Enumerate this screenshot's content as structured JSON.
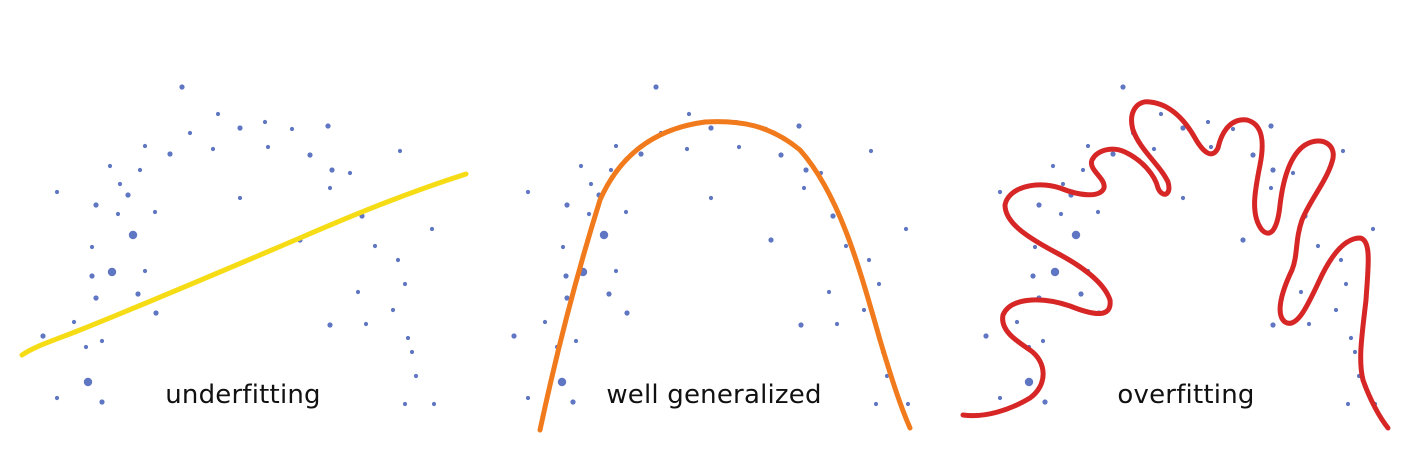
{
  "panels": [
    {
      "label": "underfitting",
      "curve_color": "#f5dc14",
      "dot_color": "#5f76c2",
      "fit": "linear"
    },
    {
      "label": "well generalized",
      "curve_color": "#f07a1c",
      "dot_color": "#5f76c2",
      "fit": "quadratic"
    },
    {
      "label": "overfitting",
      "curve_color": "#d72626",
      "dot_color": "#5f76c2",
      "fit": "high-order"
    }
  ]
}
